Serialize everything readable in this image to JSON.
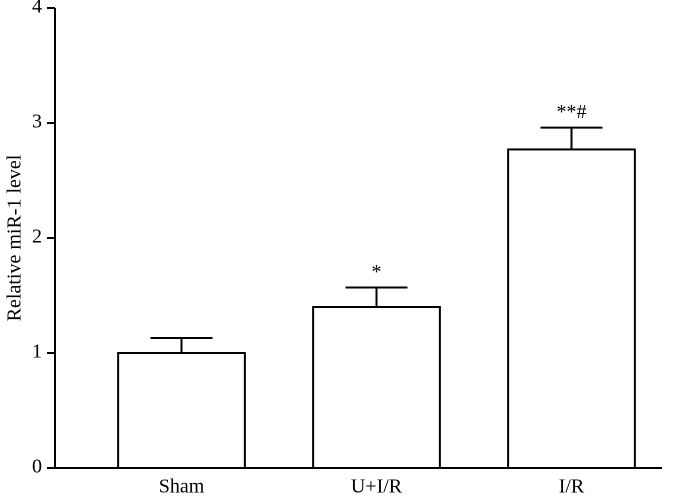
{
  "chart_data": {
    "type": "bar",
    "y_label": "Relative miR-1 level",
    "categories": [
      "Sham",
      "U+I/R",
      "I/R"
    ],
    "values": [
      1.0,
      1.4,
      2.77
    ],
    "errors": [
      0.13,
      0.17,
      0.19
    ],
    "annotations": [
      null,
      "*",
      "**#"
    ],
    "color": "#ffffff",
    "ylim": [
      0,
      4
    ],
    "yticks": [
      0,
      1,
      2,
      3,
      4
    ],
    "grid": false
  }
}
